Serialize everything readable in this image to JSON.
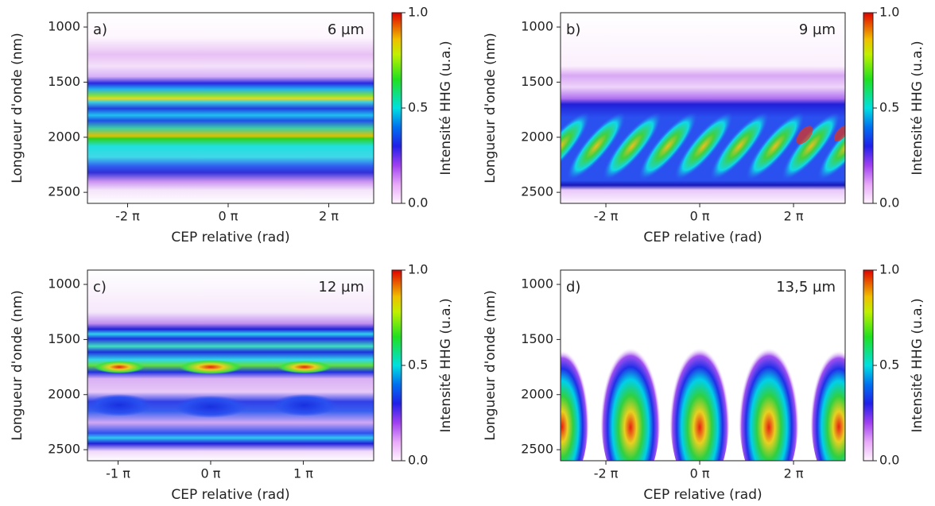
{
  "chart_data": [
    {
      "type": "heatmap",
      "panel_label": "a)",
      "annotation": "6 µm",
      "xlabel": "CEP relative (rad)",
      "ylabel": "Longueur d'onde (nm)",
      "colorbar_label": "Intensité HHG (u.a.)",
      "xlim": [
        -8.79,
        9.09
      ],
      "xticks": [
        {
          "value": -6.283,
          "label": "-2 π"
        },
        {
          "value": 0,
          "label": "0 π"
        },
        {
          "value": 6.283,
          "label": "2 π"
        }
      ],
      "ylim": [
        870,
        2600
      ],
      "y_inverted": true,
      "yticks": [
        1000,
        1500,
        2000,
        2500
      ],
      "clim": [
        0,
        1
      ],
      "cticks": [
        {
          "value": 0,
          "label": "0.0"
        },
        0.5,
        {
          "value": 1,
          "label": "1.0"
        }
      ]
    },
    {
      "type": "heatmap",
      "panel_label": "b)",
      "annotation": "9 µm",
      "xlabel": "CEP relative (rad)",
      "ylabel": "Longueur d'onde (nm)",
      "colorbar_label": "Intensité HHG (u.a.)",
      "xlim": [
        -9.32,
        9.74
      ],
      "xticks": [
        {
          "value": -6.283,
          "label": "-2 π"
        },
        {
          "value": 0,
          "label": "0 π"
        },
        {
          "value": 6.283,
          "label": "2 π"
        }
      ],
      "ylim": [
        870,
        2600
      ],
      "y_inverted": true,
      "yticks": [
        1000,
        1500,
        2000,
        2500
      ],
      "clim": [
        0,
        1
      ],
      "cticks": [
        {
          "value": 0,
          "label": "0.0"
        },
        0.5,
        {
          "value": 1,
          "label": "1.0"
        }
      ]
    },
    {
      "type": "heatmap",
      "panel_label": "c)",
      "annotation": "12 µm",
      "xlabel": "CEP relative (rad)",
      "ylabel": "Longueur d'onde (nm)",
      "colorbar_label": "Intensité HHG (u.a.)",
      "xlim": [
        -4.18,
        5.53
      ],
      "xticks": [
        {
          "value": -3.1416,
          "label": "-1 π"
        },
        {
          "value": 0,
          "label": "0 π"
        },
        {
          "value": 3.1416,
          "label": "1 π"
        }
      ],
      "ylim": [
        870,
        2600
      ],
      "y_inverted": true,
      "yticks": [
        1000,
        1500,
        2000,
        2500
      ],
      "clim": [
        0,
        1
      ],
      "cticks": [
        {
          "value": 0,
          "label": "0.0"
        },
        0.5,
        {
          "value": 1,
          "label": "1.0"
        }
      ]
    },
    {
      "type": "heatmap",
      "panel_label": "d)",
      "annotation": "13,5 µm",
      "xlabel": "CEP relative (rad)",
      "ylabel": "Longueur d'onde (nm)",
      "colorbar_label": "Intensité HHG (u.a.)",
      "xlim": [
        -9.32,
        9.74
      ],
      "xticks": [
        {
          "value": -6.283,
          "label": "-2 π"
        },
        {
          "value": 0,
          "label": "0 π"
        },
        {
          "value": 6.283,
          "label": "2 π"
        }
      ],
      "ylim": [
        870,
        2600
      ],
      "y_inverted": true,
      "yticks": [
        1000,
        1500,
        2000,
        2500
      ],
      "clim": [
        0,
        1
      ],
      "cticks": [
        {
          "value": 0,
          "label": "0.0"
        },
        0.5,
        {
          "value": 1,
          "label": "1.0"
        }
      ]
    }
  ]
}
